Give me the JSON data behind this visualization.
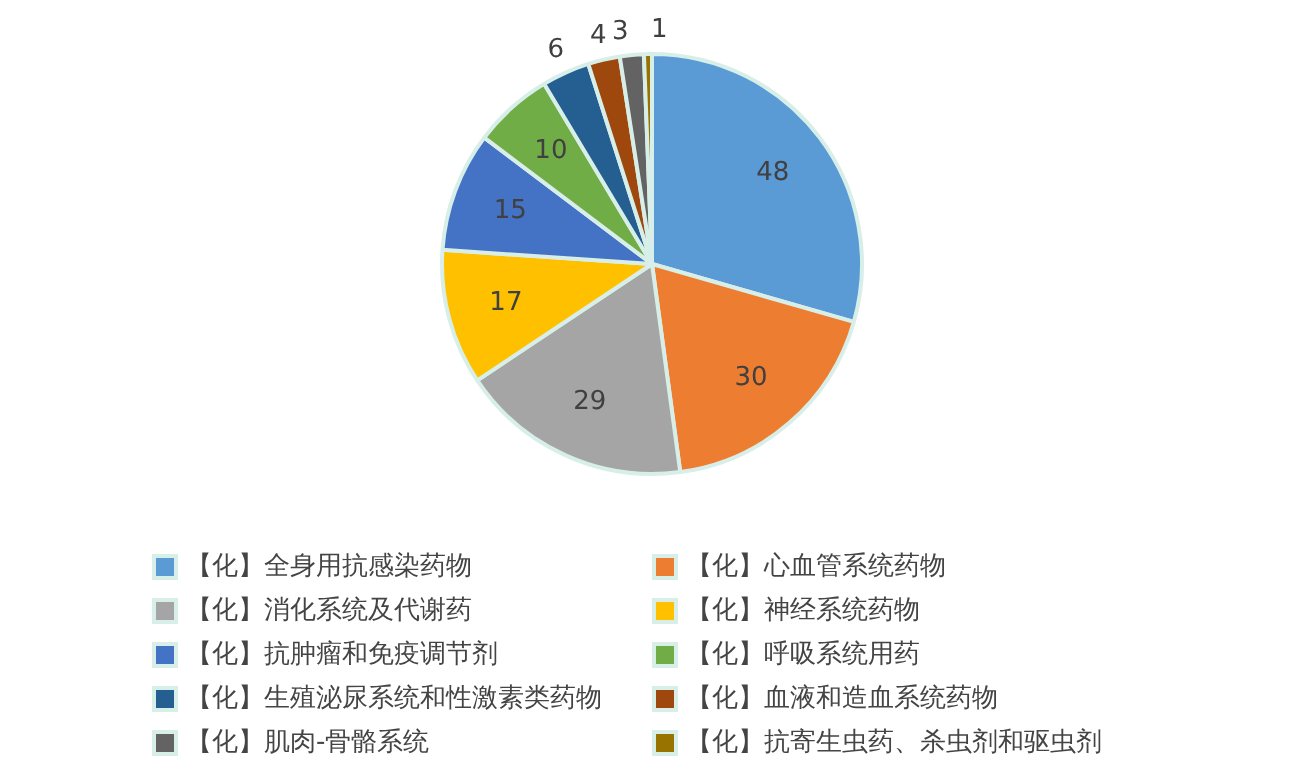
{
  "chart_data": {
    "type": "pie",
    "categories": [
      "【化】全身用抗感染药物",
      "【化】心血管系统药物",
      "【化】消化系统及代谢药",
      "【化】神经系统药物",
      "【化】抗肿瘤和免疫调节剂",
      "【化】呼吸系统用药",
      "【化】生殖泌尿系统和性激素类药物",
      "【化】血液和造血系统药物",
      "【化】肌肉-骨骼系统",
      "【化】抗寄生虫药、杀虫剂和驱虫剂"
    ],
    "values": [
      48,
      30,
      29,
      17,
      15,
      10,
      6,
      4,
      3,
      1
    ],
    "colors": [
      "#5b9bd5",
      "#ed7d31",
      "#a5a5a5",
      "#ffc000",
      "#4472c4",
      "#70ad47",
      "#255e91",
      "#9e480e",
      "#636363",
      "#997300"
    ],
    "data_labels": true,
    "legend": "bottom"
  }
}
